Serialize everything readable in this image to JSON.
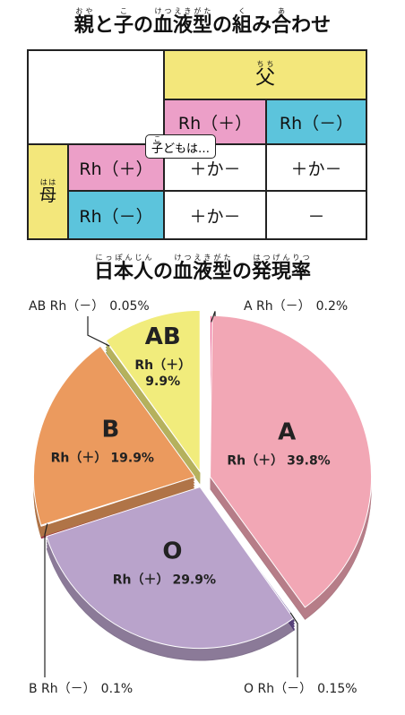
{
  "table": {
    "title": [
      {
        "text": "親",
        "ruby": "おや"
      },
      {
        "text": "と"
      },
      {
        "text": "子",
        "ruby": "こ"
      },
      {
        "text": "の"
      },
      {
        "text": "血液型",
        "ruby": "けつえきがた"
      },
      {
        "text": "の"
      },
      {
        "text": "組",
        "ruby": "く"
      },
      {
        "text": "み"
      },
      {
        "text": "合",
        "ruby": "あ"
      },
      {
        "text": "わせ"
      }
    ],
    "father": {
      "text": "父",
      "ruby": "ちち"
    },
    "mother": {
      "text": "母",
      "ruby": "はは"
    },
    "columns": [
      "Rh（＋）",
      "Rh（－）"
    ],
    "rows": [
      [
        "Rh（＋）",
        "＋か－",
        "＋か－"
      ],
      [
        "Rh（－）",
        "＋か－",
        "－"
      ]
    ],
    "callout": [
      {
        "text": "子",
        "ruby": "こ"
      },
      {
        "text": "どもは…"
      }
    ]
  },
  "chart_data": {
    "type": "pie",
    "title": [
      {
        "text": "日本人",
        "ruby": "にっぽんじん"
      },
      {
        "text": "の"
      },
      {
        "text": "血液型",
        "ruby": "けつえきがた"
      },
      {
        "text": "の"
      },
      {
        "text": "発現率",
        "ruby": "はつげんりつ"
      }
    ],
    "groups": [
      "A",
      "O",
      "B",
      "AB"
    ],
    "categories": [
      "A Rh（－）",
      "Rh（＋）",
      "O Rh（－）",
      "Rh（＋）",
      "B Rh（－）",
      "Rh（＋）",
      "AB Rh（－）",
      "Rh（＋）"
    ],
    "values": [
      0.2,
      39.8,
      0.15,
      29.9,
      0.1,
      19.9,
      0.05,
      9.9
    ],
    "value_labels": [
      "0.2%",
      "39.8%",
      "0.15%",
      "29.9%",
      "0.1%",
      "19.9%",
      "0.05%",
      "9.9%"
    ],
    "colors": [
      "#e8417a",
      "#f2a7b5",
      "#6a4c9c",
      "#b9a3cb",
      "#d6415a",
      "#eb9a5e",
      "#6e9a6a",
      "#f1ec7c"
    ]
  }
}
